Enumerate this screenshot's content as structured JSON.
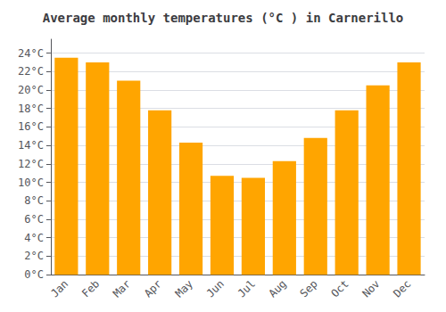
{
  "chart_data": {
    "type": "bar",
    "title": "Average monthly temperatures (°C ) in Carnerillo",
    "categories": [
      "Jan",
      "Feb",
      "Mar",
      "Apr",
      "May",
      "Jun",
      "Jul",
      "Aug",
      "Sep",
      "Oct",
      "Nov",
      "Dec"
    ],
    "values": [
      23.5,
      23.0,
      21.0,
      17.8,
      14.3,
      10.7,
      10.5,
      12.3,
      14.8,
      17.8,
      20.5,
      23.0
    ],
    "color": "#FFA500",
    "ylim": [
      0,
      25.5
    ],
    "yticks": [
      {
        "value": 0,
        "label": "0°C"
      },
      {
        "value": 2,
        "label": "2°C"
      },
      {
        "value": 4,
        "label": "4°C"
      },
      {
        "value": 6,
        "label": "6°C"
      },
      {
        "value": 8,
        "label": "8°C"
      },
      {
        "value": 10,
        "label": "10°C"
      },
      {
        "value": 12,
        "label": "12°C"
      },
      {
        "value": 14,
        "label": "14°C"
      },
      {
        "value": 16,
        "label": "16°C"
      },
      {
        "value": 18,
        "label": "18°C"
      },
      {
        "value": 20,
        "label": "20°C"
      },
      {
        "value": 22,
        "label": "22°C"
      },
      {
        "value": 24,
        "label": "24°C"
      }
    ],
    "grid": true
  }
}
